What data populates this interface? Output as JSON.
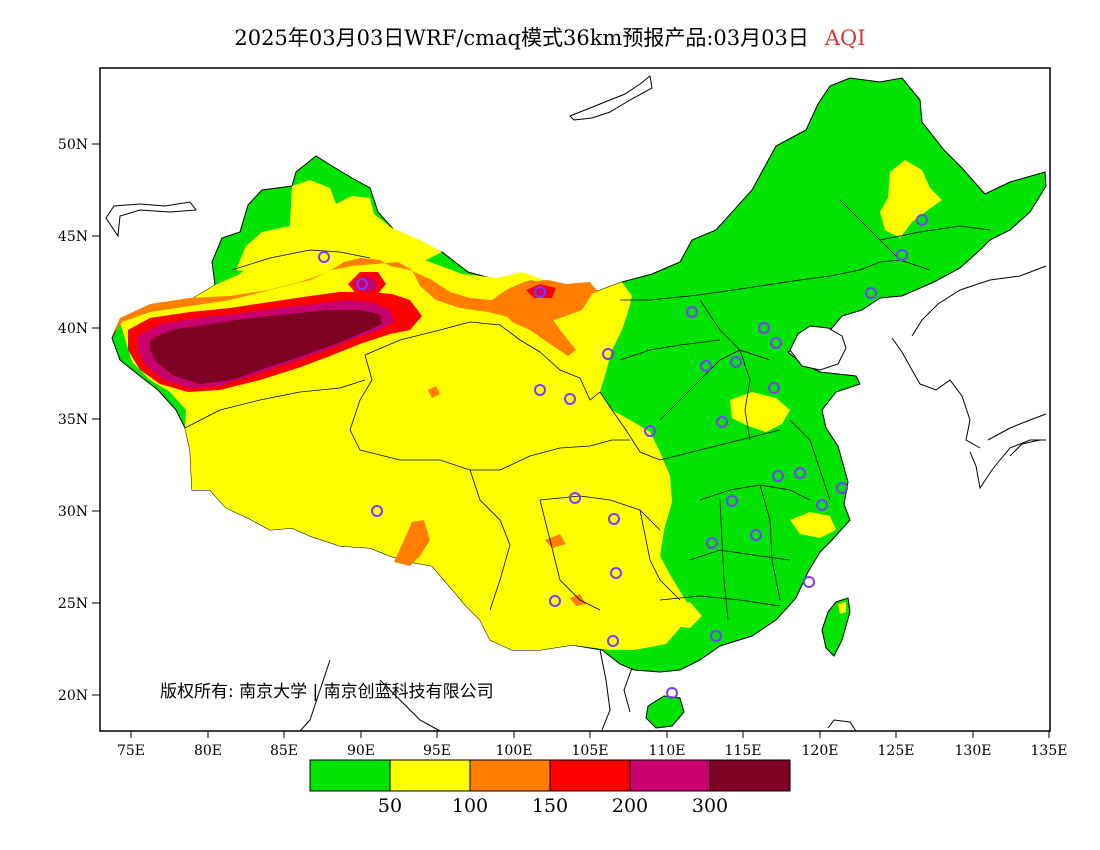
{
  "title": {
    "main": "2025年03月03日WRF/cmaq模式36km预报产品:03月03日",
    "variable": "AQI",
    "variable_color": "#d23a3a"
  },
  "axes": {
    "lat_labels": [
      "50N",
      "45N",
      "40N",
      "35N",
      "30N",
      "25N",
      "20N"
    ],
    "lon_labels": [
      "75E",
      "80E",
      "85E",
      "90E",
      "95E",
      "100E",
      "105E",
      "110E",
      "115E",
      "120E",
      "125E",
      "130E",
      "135E"
    ]
  },
  "colorbar": {
    "colors": [
      "#00e400",
      "#ffff00",
      "#ff7e00",
      "#ff0000",
      "#c8006e",
      "#7e0023"
    ],
    "labels": [
      "50",
      "100",
      "150",
      "200",
      "300"
    ]
  },
  "copyright": "版权所有: 南京大学 | 南京创蓝科技有限公司",
  "stations_color": "#7a3cff"
}
